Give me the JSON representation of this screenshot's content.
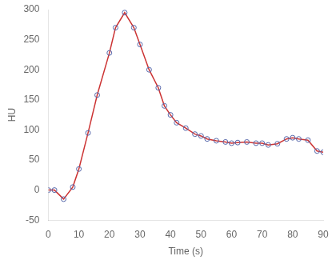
{
  "chart_data": {
    "type": "line",
    "xlabel": "Time (s)",
    "ylabel": "HU",
    "x": [
      0,
      2,
      5,
      8,
      10,
      13,
      16,
      20,
      22,
      25,
      28,
      30,
      33,
      36,
      38,
      40,
      42,
      45,
      48,
      50,
      52,
      55,
      58,
      60,
      62,
      65,
      68,
      70,
      72,
      75,
      78,
      80,
      82,
      85,
      88,
      90
    ],
    "series": [
      {
        "values": [
          0,
          0,
          -15,
          5,
          35,
          95,
          158,
          228,
          270,
          295,
          270,
          242,
          200,
          170,
          140,
          125,
          112,
          103,
          93,
          90,
          85,
          82,
          80,
          78,
          79,
          80,
          78,
          78,
          75,
          77,
          85,
          87,
          85,
          83,
          65,
          63
        ],
        "color": "#cc3333",
        "colors": [
          "#5566aa",
          "#5566aa",
          "#5566aa",
          "#5566aa",
          "#5566aa",
          "#5566aa",
          "#5566aa",
          "#5566aa",
          "#5566aa",
          "#5566aa",
          "#5566aa",
          "#5566aa",
          "#5566aa",
          "#5566aa",
          "#5566aa",
          "#5566aa",
          "#5566aa",
          "#5566aa",
          "#5566aa",
          "#5566aa",
          "#5566aa",
          "#5566aa",
          "#5566aa",
          "#5566aa",
          "#5566aa",
          "#5566aa",
          "#5566aa",
          "#5566aa",
          "#5566aa",
          "#5566aa",
          "#5566aa",
          "#5566aa",
          "#5566aa",
          "#5566aa",
          "#5566aa",
          "#5566aa"
        ],
        "marker": "circle"
      }
    ],
    "xlim": [
      0,
      90
    ],
    "ylim": [
      -50,
      300
    ],
    "xticks": [
      0,
      10,
      20,
      30,
      40,
      50,
      60,
      70,
      80,
      90
    ],
    "yticks": [
      -50,
      0,
      50,
      100,
      150,
      200,
      250,
      300
    ],
    "grid": false
  }
}
